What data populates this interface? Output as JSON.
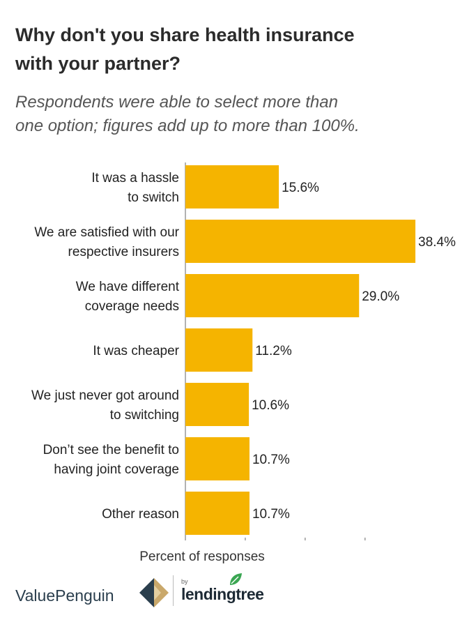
{
  "title_lines": [
    "Why don't you share health insurance",
    "with your partner?"
  ],
  "subtitle_lines": [
    "Respondents were able to select more than",
    "one option; figures add up to more than 100%."
  ],
  "chart_data": {
    "type": "bar",
    "orientation": "horizontal",
    "categories": [
      [
        "It was a hassle",
        "to switch"
      ],
      [
        "We are satisfied with our",
        "respective insurers"
      ],
      [
        "We have different",
        "coverage needs"
      ],
      [
        "It was cheaper"
      ],
      [
        "We just never got around",
        "to switching"
      ],
      [
        "Don’t see the benefit to",
        "having joint coverage"
      ],
      [
        "Other reason"
      ]
    ],
    "values": [
      15.6,
      38.4,
      29.0,
      11.2,
      10.6,
      10.7,
      10.7
    ],
    "value_labels": [
      "15.6%",
      "38.4%",
      "29.0%",
      "11.2%",
      "10.6%",
      "10.7%",
      "10.7%"
    ],
    "xlabel": "Percent of responses",
    "xlim": [
      0,
      38.4
    ],
    "bar_color": "#f5b400",
    "grid": false
  },
  "brand": {
    "name": "ValuePenguin",
    "by": "by",
    "partner": "lendingtree",
    "colors": {
      "navy": "#2a3e4d",
      "gold": "#c9a86b",
      "green": "#3aa652"
    }
  }
}
